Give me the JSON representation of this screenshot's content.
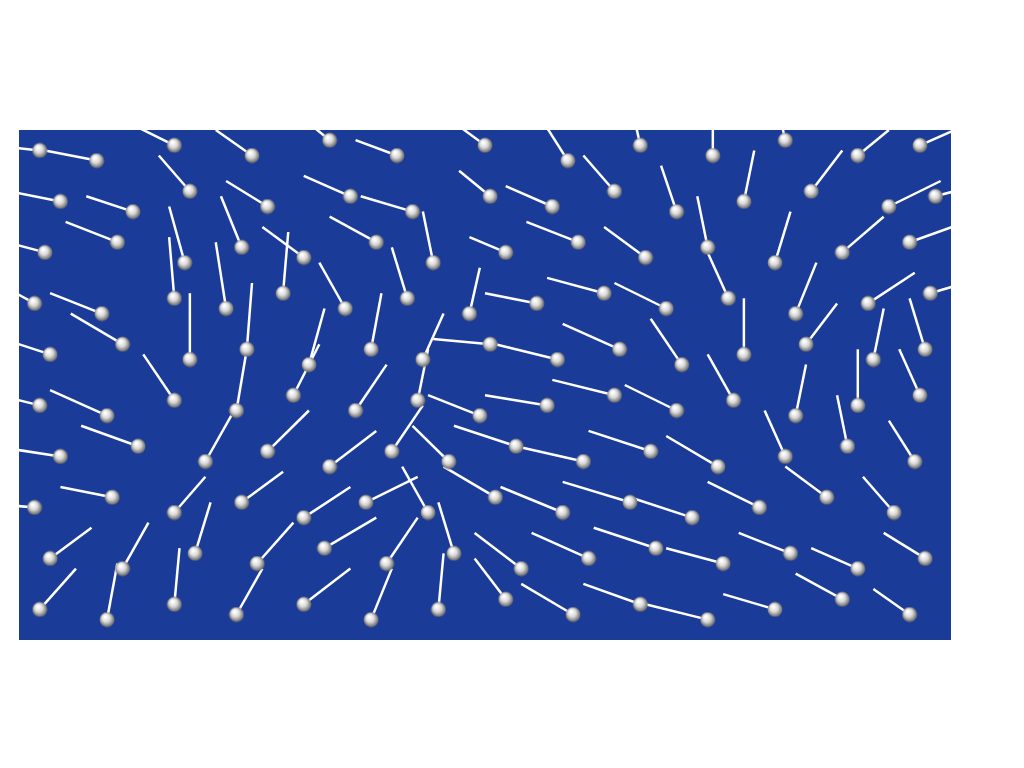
{
  "chart_data": {
    "type": "scatter",
    "color": "#ffffff",
    "marker": "sphere",
    "grid": false,
    "tick_labels": false,
    "xlim": [
      0,
      18
    ],
    "ylim": [
      0,
      10
    ],
    "particles": [
      [
        0.4,
        9.6,
        -0.9,
        0.1
      ],
      [
        1.5,
        9.4,
        -1.0,
        0.2
      ],
      [
        3.0,
        9.7,
        -0.8,
        0.4
      ],
      [
        4.5,
        9.5,
        -0.7,
        0.5
      ],
      [
        6.0,
        9.8,
        -0.6,
        0.5
      ],
      [
        7.3,
        9.5,
        -0.8,
        0.3
      ],
      [
        9.0,
        9.7,
        -0.8,
        0.6
      ],
      [
        10.6,
        9.4,
        -0.5,
        0.8
      ],
      [
        12.0,
        9.7,
        -0.2,
        0.9
      ],
      [
        13.4,
        9.5,
        0.0,
        1.0
      ],
      [
        14.8,
        9.8,
        -0.2,
        0.9
      ],
      [
        16.2,
        9.5,
        0.6,
        0.5
      ],
      [
        17.4,
        9.7,
        0.9,
        0.4
      ],
      [
        0.8,
        8.6,
        -1.0,
        0.2
      ],
      [
        2.2,
        8.4,
        -0.9,
        0.3
      ],
      [
        3.3,
        8.8,
        -0.6,
        0.7
      ],
      [
        4.8,
        8.5,
        -0.8,
        0.5
      ],
      [
        6.4,
        8.7,
        -0.9,
        0.4
      ],
      [
        7.6,
        8.4,
        -1.0,
        0.3
      ],
      [
        9.1,
        8.7,
        -0.6,
        0.5
      ],
      [
        10.3,
        8.5,
        -0.9,
        0.4
      ],
      [
        11.5,
        8.8,
        -0.6,
        0.7
      ],
      [
        12.7,
        8.4,
        -0.3,
        0.9
      ],
      [
        14.0,
        8.6,
        0.2,
        1.0
      ],
      [
        15.3,
        8.8,
        0.6,
        0.8
      ],
      [
        16.8,
        8.5,
        1.0,
        0.5
      ],
      [
        17.7,
        8.7,
        1.1,
        0.3
      ],
      [
        0.5,
        7.6,
        -1.1,
        0.3
      ],
      [
        1.9,
        7.8,
        -1.0,
        0.4
      ],
      [
        3.2,
        7.4,
        -0.3,
        1.1
      ],
      [
        4.3,
        7.7,
        -0.4,
        1.0
      ],
      [
        5.5,
        7.5,
        -0.8,
        0.6
      ],
      [
        6.9,
        7.8,
        -0.9,
        0.5
      ],
      [
        8.0,
        7.4,
        -0.2,
        1.0
      ],
      [
        9.4,
        7.6,
        -0.7,
        0.3
      ],
      [
        10.8,
        7.8,
        -1.0,
        0.4
      ],
      [
        12.1,
        7.5,
        -0.8,
        0.6
      ],
      [
        13.3,
        7.7,
        -0.2,
        1.0
      ],
      [
        14.6,
        7.4,
        0.3,
        1.0
      ],
      [
        15.9,
        7.6,
        0.8,
        0.7
      ],
      [
        17.2,
        7.8,
        1.1,
        0.4
      ],
      [
        0.3,
        6.6,
        -0.9,
        0.5
      ],
      [
        1.6,
        6.4,
        -1.0,
        0.4
      ],
      [
        3.0,
        6.7,
        -0.1,
        1.2
      ],
      [
        4.0,
        6.5,
        -0.2,
        1.3
      ],
      [
        5.1,
        6.8,
        0.1,
        1.2
      ],
      [
        6.3,
        6.5,
        -0.5,
        0.9
      ],
      [
        7.5,
        6.7,
        -0.3,
        1.0
      ],
      [
        8.7,
        6.4,
        0.2,
        0.9
      ],
      [
        10.0,
        6.6,
        -1.0,
        0.2
      ],
      [
        11.3,
        6.8,
        -1.1,
        0.3
      ],
      [
        12.5,
        6.5,
        -1.0,
        0.5
      ],
      [
        13.7,
        6.7,
        -0.4,
        0.9
      ],
      [
        15.0,
        6.4,
        0.4,
        1.0
      ],
      [
        16.4,
        6.6,
        0.9,
        0.6
      ],
      [
        17.6,
        6.8,
        1.0,
        0.3
      ],
      [
        0.6,
        5.6,
        -1.2,
        0.4
      ],
      [
        2.0,
        5.8,
        -1.0,
        0.6
      ],
      [
        3.3,
        5.5,
        0.0,
        1.3
      ],
      [
        4.4,
        5.7,
        0.1,
        1.3
      ],
      [
        5.6,
        5.4,
        0.3,
        1.1
      ],
      [
        6.8,
        5.7,
        0.2,
        1.1
      ],
      [
        7.8,
        5.5,
        0.4,
        0.9
      ],
      [
        9.1,
        5.8,
        -1.1,
        0.1
      ],
      [
        10.4,
        5.5,
        -1.2,
        0.3
      ],
      [
        11.6,
        5.7,
        -1.1,
        0.5
      ],
      [
        12.8,
        5.4,
        -0.6,
        0.9
      ],
      [
        14.0,
        5.6,
        0.0,
        1.1
      ],
      [
        15.2,
        5.8,
        0.6,
        0.8
      ],
      [
        16.5,
        5.5,
        0.2,
        1.0
      ],
      [
        17.5,
        5.7,
        -0.3,
        1.0
      ],
      [
        0.4,
        4.6,
        -1.2,
        0.3
      ],
      [
        1.7,
        4.4,
        -1.1,
        0.5
      ],
      [
        3.0,
        4.7,
        -0.6,
        0.9
      ],
      [
        4.2,
        4.5,
        0.2,
        1.2
      ],
      [
        5.3,
        4.8,
        0.5,
        1.0
      ],
      [
        6.5,
        4.5,
        0.6,
        0.9
      ],
      [
        7.7,
        4.7,
        0.2,
        1.0
      ],
      [
        8.9,
        4.4,
        -1.0,
        0.4
      ],
      [
        10.2,
        4.6,
        -1.2,
        0.2
      ],
      [
        11.5,
        4.8,
        -1.2,
        0.3
      ],
      [
        12.7,
        4.5,
        -1.0,
        0.5
      ],
      [
        13.8,
        4.7,
        -0.5,
        0.9
      ],
      [
        15.0,
        4.4,
        0.2,
        1.0
      ],
      [
        16.2,
        4.6,
        0.0,
        1.1
      ],
      [
        17.4,
        4.8,
        -0.4,
        0.9
      ],
      [
        0.8,
        3.6,
        -1.3,
        0.2
      ],
      [
        2.3,
        3.8,
        -1.1,
        0.4
      ],
      [
        3.6,
        3.5,
        0.5,
        0.9
      ],
      [
        4.8,
        3.7,
        0.8,
        0.8
      ],
      [
        6.0,
        3.4,
        0.9,
        0.7
      ],
      [
        7.2,
        3.7,
        0.6,
        0.9
      ],
      [
        8.3,
        3.5,
        -0.7,
        0.7
      ],
      [
        9.6,
        3.8,
        -1.2,
        0.4
      ],
      [
        10.9,
        3.5,
        -1.3,
        0.3
      ],
      [
        12.2,
        3.7,
        -1.2,
        0.4
      ],
      [
        13.5,
        3.4,
        -1.0,
        0.6
      ],
      [
        14.8,
        3.6,
        -0.4,
        0.9
      ],
      [
        16.0,
        3.8,
        -0.2,
        1.0
      ],
      [
        17.3,
        3.5,
        -0.5,
        0.8
      ],
      [
        0.3,
        2.6,
        -1.2,
        0.1
      ],
      [
        1.8,
        2.8,
        -1.0,
        0.2
      ],
      [
        3.0,
        2.5,
        0.6,
        0.7
      ],
      [
        4.3,
        2.7,
        0.8,
        0.6
      ],
      [
        5.5,
        2.4,
        0.9,
        0.6
      ],
      [
        6.7,
        2.7,
        1.0,
        0.5
      ],
      [
        7.9,
        2.5,
        -0.5,
        0.9
      ],
      [
        9.2,
        2.8,
        -1.0,
        0.6
      ],
      [
        10.5,
        2.5,
        -1.2,
        0.5
      ],
      [
        11.8,
        2.7,
        -1.3,
        0.4
      ],
      [
        13.0,
        2.4,
        -1.2,
        0.4
      ],
      [
        14.3,
        2.6,
        -1.0,
        0.5
      ],
      [
        15.6,
        2.8,
        -0.8,
        0.6
      ],
      [
        16.9,
        2.5,
        -0.6,
        0.7
      ],
      [
        0.6,
        1.6,
        0.8,
        0.6
      ],
      [
        2.0,
        1.4,
        0.5,
        0.9
      ],
      [
        3.4,
        1.7,
        0.3,
        1.0
      ],
      [
        4.6,
        1.5,
        0.7,
        0.8
      ],
      [
        5.9,
        1.8,
        1.0,
        0.6
      ],
      [
        7.1,
        1.5,
        0.6,
        0.9
      ],
      [
        8.4,
        1.7,
        -0.3,
        1.0
      ],
      [
        9.7,
        1.4,
        -0.9,
        0.7
      ],
      [
        11.0,
        1.6,
        -1.1,
        0.5
      ],
      [
        12.3,
        1.8,
        -1.2,
        0.4
      ],
      [
        13.6,
        1.5,
        -1.1,
        0.3
      ],
      [
        14.9,
        1.7,
        -1.0,
        0.4
      ],
      [
        16.2,
        1.4,
        -0.9,
        0.4
      ],
      [
        17.5,
        1.6,
        -0.8,
        0.5
      ],
      [
        0.4,
        0.6,
        0.7,
        0.8
      ],
      [
        1.7,
        0.4,
        0.2,
        1.1
      ],
      [
        3.0,
        0.7,
        0.1,
        1.1
      ],
      [
        4.2,
        0.5,
        0.5,
        0.9
      ],
      [
        5.5,
        0.7,
        0.9,
        0.7
      ],
      [
        6.8,
        0.4,
        0.4,
        1.0
      ],
      [
        8.1,
        0.6,
        0.1,
        1.1
      ],
      [
        9.4,
        0.8,
        -0.6,
        0.8
      ],
      [
        10.7,
        0.5,
        -1.0,
        0.6
      ],
      [
        12.0,
        0.7,
        -1.1,
        0.4
      ],
      [
        13.3,
        0.4,
        -1.2,
        0.3
      ],
      [
        14.6,
        0.6,
        -1.0,
        0.3
      ],
      [
        15.9,
        0.8,
        -0.9,
        0.5
      ],
      [
        17.2,
        0.5,
        -0.7,
        0.5
      ]
    ]
  }
}
